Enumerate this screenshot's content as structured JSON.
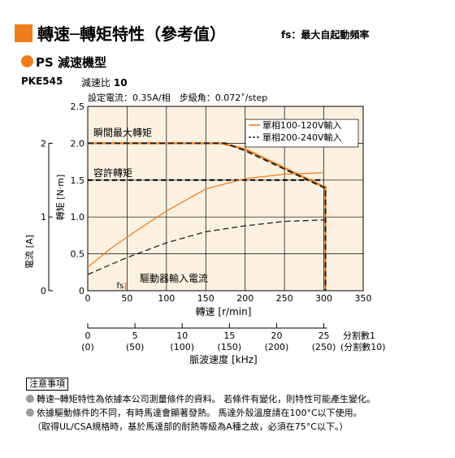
{
  "header": {
    "title": "轉速─轉矩特性（參考值）",
    "subtitle": "fs：最大自起動頻率",
    "accent_color": "#ef7d1b"
  },
  "series_heading": "PS 減速機型",
  "model": "PKE545",
  "ratio_label": "減速比",
  "ratio_value": "10",
  "conditions": "設定電流：0.35A/相　步級角：0.072˚/step",
  "chart_data": {
    "type": "line",
    "xlabel": "轉速 [r/min]",
    "ylabel_torque": "轉矩 [N·m]",
    "ylabel_current": "電流 [A]",
    "xlim": [
      0,
      350
    ],
    "ylim": [
      0,
      2.5
    ],
    "x_ticks": [
      "0",
      "50",
      "100",
      "150",
      "200",
      "250",
      "300",
      "350"
    ],
    "y_ticks": [
      "0",
      "0.5",
      "1.0",
      "1.5",
      "2.0",
      "2.5"
    ],
    "current_ticks": [
      "0",
      "1",
      "2"
    ],
    "current_ylim": [
      0,
      2.5
    ],
    "series": [
      {
        "name": "單相100-120V輸入",
        "style": "solid",
        "color": "#ef7d1b",
        "torque_x": [
          0,
          170,
          200,
          300,
          302,
          302
        ],
        "torque_y": [
          2.0,
          2.0,
          1.92,
          1.41,
          1.41,
          0
        ],
        "current_x": [
          0,
          30,
          60,
          100,
          150,
          200,
          250,
          300
        ],
        "current_y": [
          0.32,
          0.58,
          0.8,
          1.08,
          1.38,
          1.52,
          1.58,
          1.6
        ]
      },
      {
        "name": "單相200-240V輸入",
        "style": "dashed",
        "color": "#222222",
        "torque_x": [
          0,
          175,
          200,
          300,
          302,
          302
        ],
        "torque_y": [
          2.0,
          2.0,
          1.9,
          1.4,
          1.4,
          0
        ],
        "current_x": [
          0,
          50,
          100,
          150,
          200,
          250,
          300
        ],
        "current_y": [
          0.22,
          0.45,
          0.65,
          0.8,
          0.88,
          0.94,
          0.96
        ]
      }
    ],
    "annotations": {
      "instant_max": {
        "text": "瞬間最大轉矩",
        "value": 2.0
      },
      "permissible": {
        "text": "容許轉矩",
        "value": 1.5
      },
      "driver_current": "驅動器輸入電流",
      "fs_label": "fs",
      "fs_x": 48
    },
    "pulse_axis": {
      "label": "脈波速度 [kHz]",
      "ticks": [
        "0",
        "5",
        "10",
        "15",
        "20",
        "25"
      ],
      "ticks_sub": [
        "(0)",
        "(50)",
        "(100)",
        "(150)",
        "(200)",
        "(250)"
      ],
      "div1": "分割數1",
      "div10": "(分割數10)"
    },
    "grid": true,
    "legend_position": "top-right",
    "background_color": "#fcf1e1"
  },
  "notes": {
    "title": "注意事項",
    "items": [
      "轉速─轉矩特性為依據本公司測量條件的資料。 若條件有變化，則特性可能產生變化。",
      "依據驅動條件的不同，有時馬達會顯著發熱。 馬達外殼溫度請在100°C以下使用。"
    ],
    "sub": "（取得UL/CSA規格時，基於馬達部的耐熱等級為A種之故，必須在75°C以下。）"
  }
}
